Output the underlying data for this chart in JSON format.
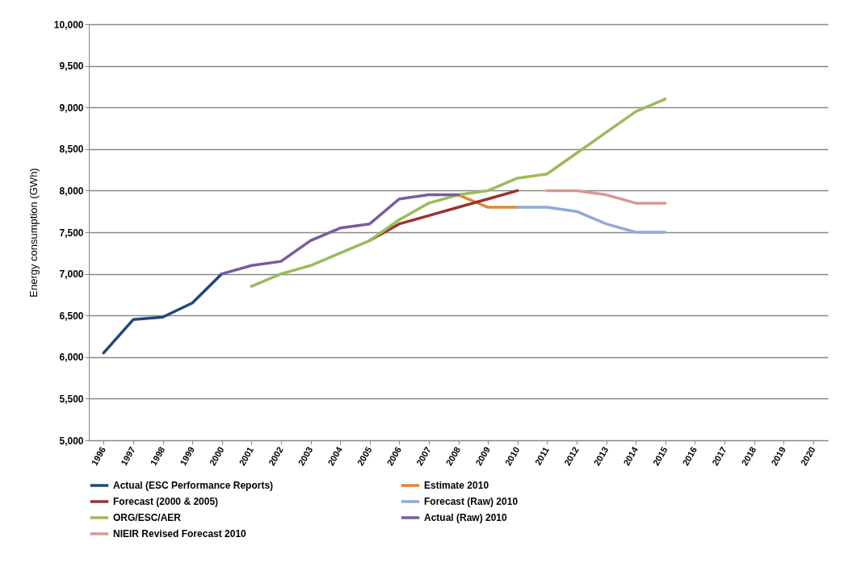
{
  "chart_data": {
    "type": "line",
    "ylabel": "Energy consumption (GWh)",
    "categories": [
      "1996",
      "1997",
      "1998",
      "1999",
      "2000",
      "2001",
      "2002",
      "2003",
      "2004",
      "2005",
      "2006",
      "2007",
      "2008",
      "2009",
      "2010",
      "2011",
      "2012",
      "2013",
      "2014",
      "2015",
      "2016",
      "2017",
      "2018",
      "2019",
      "2020"
    ],
    "ylim": [
      5000,
      10000
    ],
    "yticks": [
      {
        "value": 5000,
        "label": "5,000"
      },
      {
        "value": 5500,
        "label": "5,500"
      },
      {
        "value": 6000,
        "label": "6,000"
      },
      {
        "value": 6500,
        "label": "6,500"
      },
      {
        "value": 7000,
        "label": "7,000"
      },
      {
        "value": 7500,
        "label": "7,500"
      },
      {
        "value": 8000,
        "label": "8,000"
      },
      {
        "value": 8500,
        "label": "8,500"
      },
      {
        "value": 9000,
        "label": "9,000"
      },
      {
        "value": 9500,
        "label": "9,500"
      },
      {
        "value": 10000,
        "label": "10,000"
      }
    ],
    "grid": "y",
    "legend": "bottom",
    "marker": "none",
    "line_style": "solid",
    "series": [
      {
        "name": "Actual (ESC Performance Reports)",
        "color": "#1f497d",
        "values": [
          6050,
          6450,
          6480,
          6650,
          7000,
          null,
          null,
          null,
          null,
          null,
          null,
          null,
          null,
          null,
          null,
          null,
          null,
          null,
          null,
          null,
          null,
          null,
          null,
          null,
          null
        ]
      },
      {
        "name": "Estimate 2010",
        "color": "#e3852f",
        "values": [
          null,
          null,
          null,
          null,
          null,
          null,
          null,
          null,
          null,
          null,
          null,
          null,
          7950,
          7800,
          7800,
          null,
          null,
          null,
          null,
          null,
          null,
          null,
          null,
          null,
          null
        ]
      },
      {
        "name": "Forecast (2000 & 2005)",
        "color": "#993333",
        "values": [
          null,
          null,
          null,
          null,
          null,
          null,
          null,
          null,
          null,
          7400,
          7600,
          7700,
          7800,
          7900,
          8000,
          null,
          null,
          null,
          null,
          null,
          null,
          null,
          null,
          null,
          null
        ]
      },
      {
        "name": "Forecast (Raw) 2010",
        "color": "#8eaadb",
        "values": [
          null,
          null,
          null,
          null,
          null,
          null,
          null,
          null,
          null,
          null,
          null,
          null,
          null,
          null,
          7800,
          7800,
          7750,
          7600,
          7500,
          7500,
          null,
          null,
          null,
          null,
          null
        ]
      },
      {
        "name": "ORG/ESC/AER",
        "color": "#9bbb59",
        "values": [
          null,
          null,
          null,
          null,
          null,
          6850,
          7000,
          7100,
          7250,
          7400,
          7650,
          7850,
          7950,
          8000,
          8150,
          8200,
          8450,
          8700,
          8950,
          9100,
          null,
          null,
          null,
          null,
          null
        ]
      },
      {
        "name": "Actual (Raw) 2010",
        "color": "#7a5c9a",
        "values": [
          null,
          null,
          null,
          null,
          7000,
          7100,
          7150,
          7400,
          7550,
          7600,
          7900,
          7950,
          7950,
          null,
          null,
          null,
          null,
          null,
          null,
          null,
          null,
          null,
          null,
          null,
          null
        ]
      },
      {
        "name": "NIEIR Revised Forecast 2010",
        "color": "#d99694",
        "values": [
          null,
          null,
          null,
          null,
          null,
          null,
          null,
          null,
          null,
          null,
          null,
          null,
          null,
          null,
          null,
          8000,
          8000,
          7950,
          7850,
          7850,
          null,
          null,
          null,
          null,
          null
        ]
      }
    ]
  }
}
